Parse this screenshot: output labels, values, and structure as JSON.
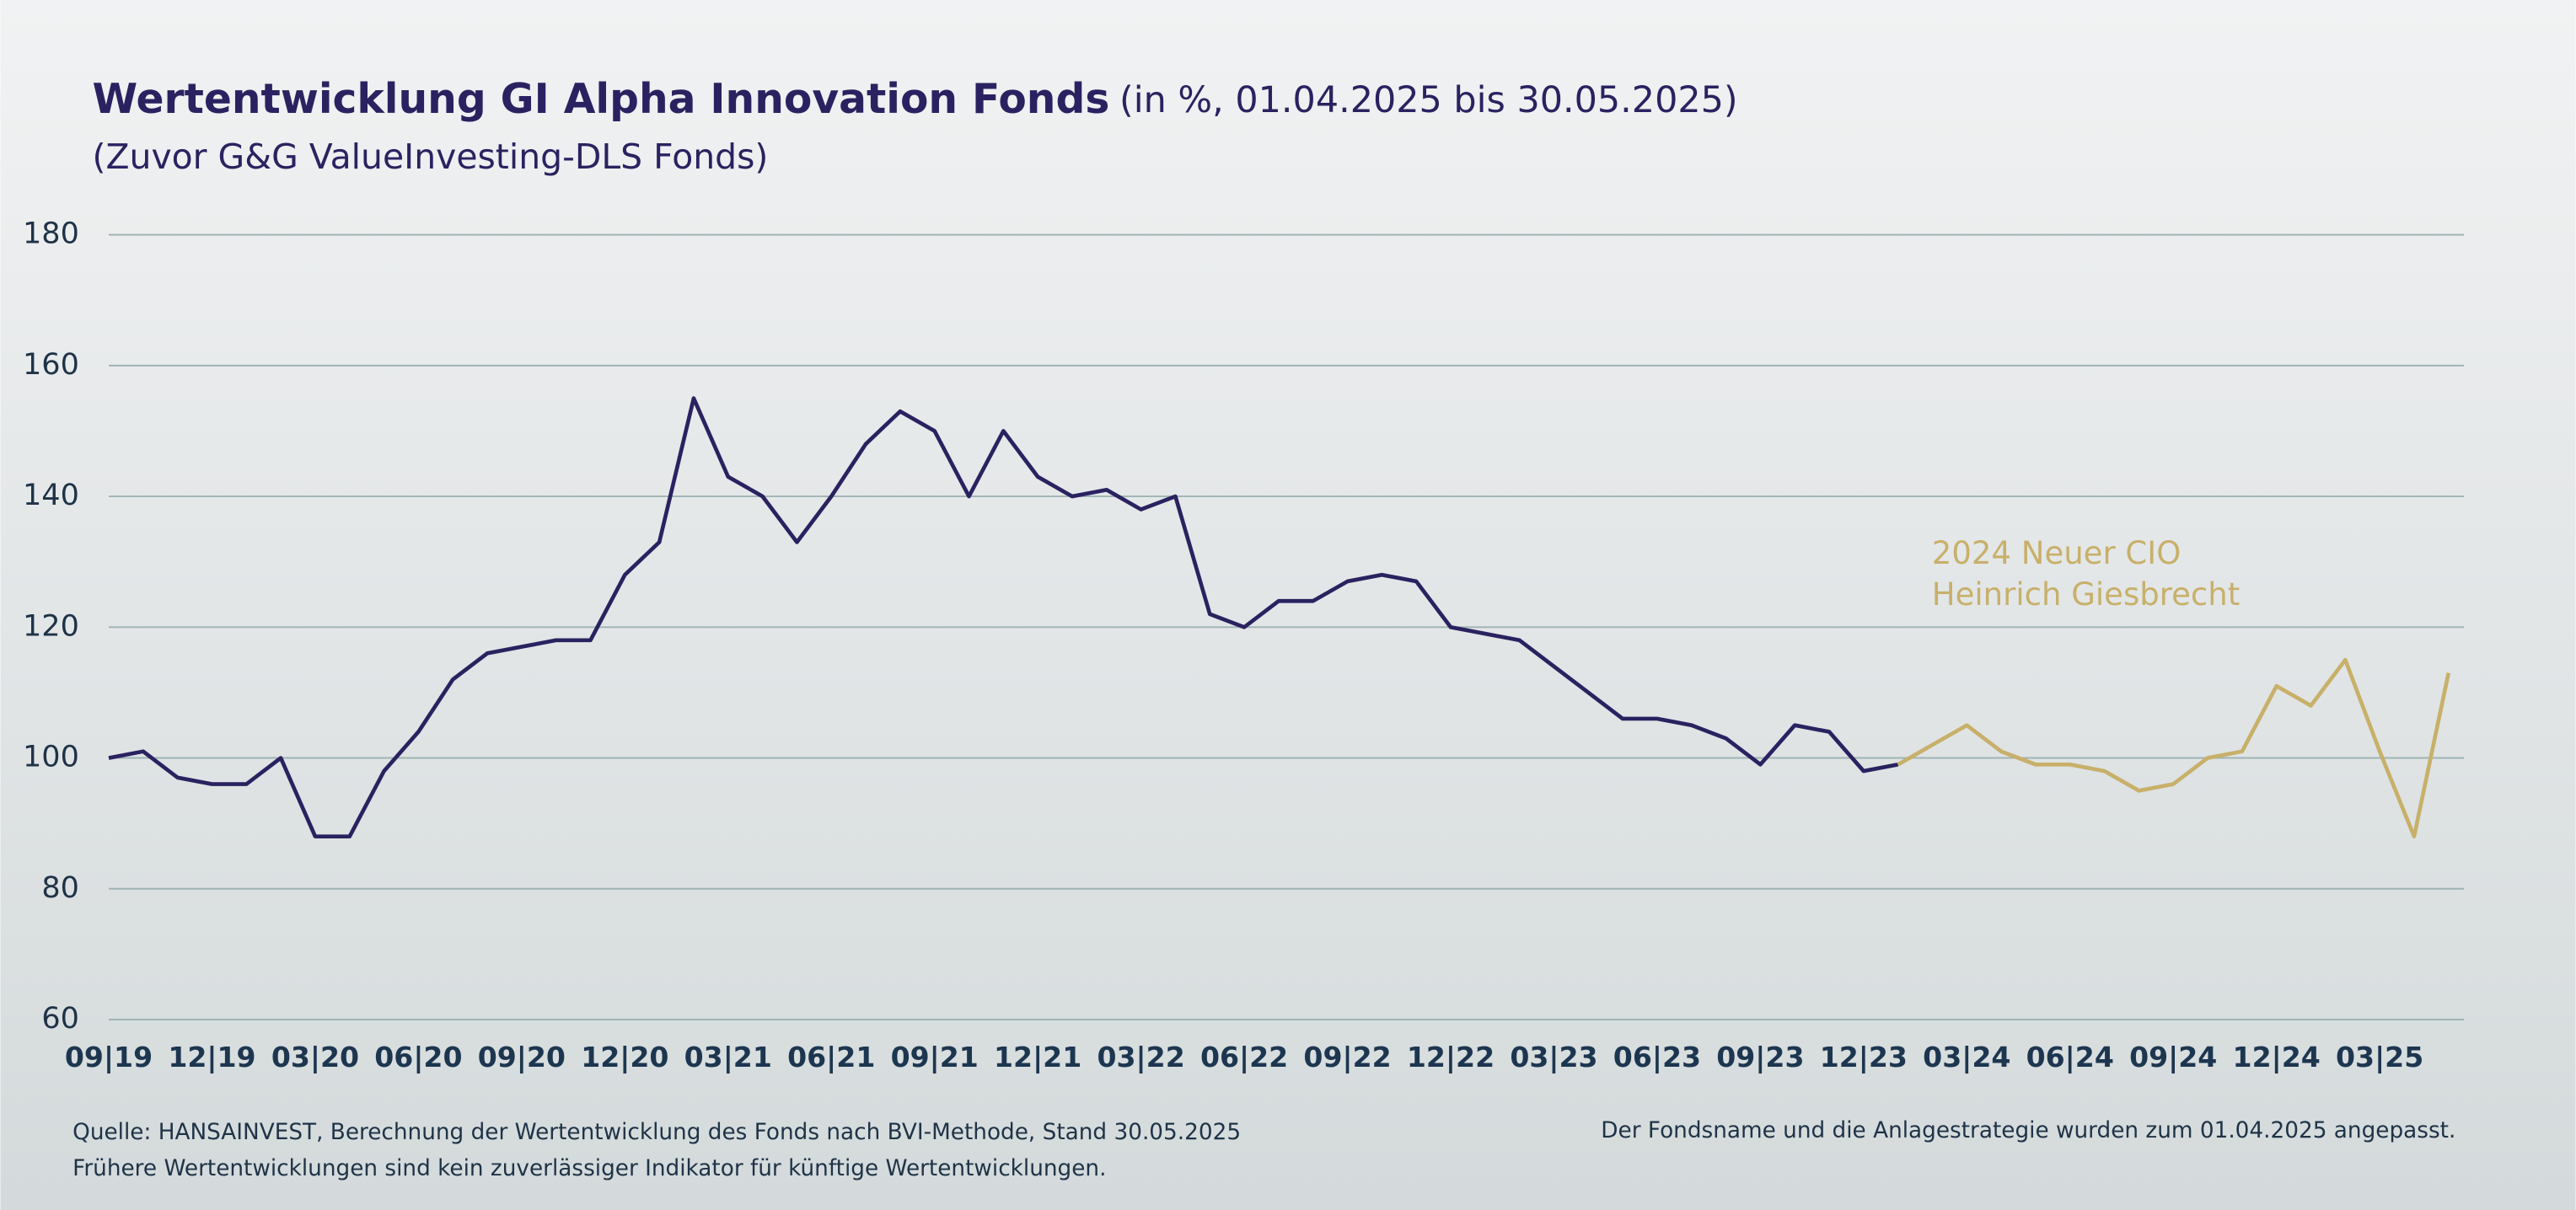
{
  "chart_data": {
    "type": "line",
    "title": "Wertentwicklung GI Alpha Innovation Fonds",
    "title_note": "(in %, 01.04.2025 bis 30.05.2025)",
    "subtitle": "(Zuvor G&G ValueInvesting-DLS Fonds)",
    "annotation": [
      "2024 Neuer CIO",
      "Heinrich Giesbrecht"
    ],
    "source": [
      "Quelle: HANSAINVEST, Berechnung der Wertentwicklung des Fonds nach BVI-Methode, Stand 30.05.2025",
      "Frühere Wertentwicklungen sind kein zuverlässiger Indikator für künftige Wertentwicklungen."
    ],
    "note": "Der Fondsname und die Anlagestrategie wurden zum 01.04.2025 angepasst.",
    "x": [
      "2019-09",
      "2019-10",
      "2019-11",
      "2019-12",
      "2020-01",
      "2020-02",
      "2020-03",
      "2020-04",
      "2020-05",
      "2020-06",
      "2020-07",
      "2020-08",
      "2020-09",
      "2020-10",
      "2020-11",
      "2020-12",
      "2021-01",
      "2021-02",
      "2021-03",
      "2021-04",
      "2021-05",
      "2021-06",
      "2021-07",
      "2021-08",
      "2021-09",
      "2021-10",
      "2021-11",
      "2021-12",
      "2022-01",
      "2022-02",
      "2022-03",
      "2022-04",
      "2022-05",
      "2022-06",
      "2022-07",
      "2022-08",
      "2022-09",
      "2022-10",
      "2022-11",
      "2022-12",
      "2023-01",
      "2023-02",
      "2023-03",
      "2023-04",
      "2023-05",
      "2023-06",
      "2023-07",
      "2023-08",
      "2023-09",
      "2023-10",
      "2023-11",
      "2023-12",
      "2024-01",
      "2024-02",
      "2024-03",
      "2024-04",
      "2024-05",
      "2024-06",
      "2024-07",
      "2024-08",
      "2024-09",
      "2024-10",
      "2024-11",
      "2024-12",
      "2025-01",
      "2025-02",
      "2025-03",
      "2025-04",
      "2025-05"
    ],
    "series": [
      {
        "name": "Fonds",
        "color": "#2a2260",
        "values": [
          100,
          101,
          97,
          96,
          96,
          100,
          88,
          88,
          98,
          104,
          112,
          116,
          117,
          118,
          118,
          128,
          133,
          155,
          143,
          140,
          133,
          140,
          148,
          153,
          150,
          140,
          150,
          143,
          140,
          141,
          138,
          140,
          122,
          120,
          124,
          124,
          127,
          128,
          127,
          120,
          119,
          118,
          114,
          110,
          106,
          106,
          105,
          103,
          99,
          105,
          104,
          98,
          99,
          null,
          null,
          null,
          null,
          null,
          null,
          null,
          null,
          null,
          null,
          null,
          null,
          null,
          null,
          null,
          null
        ]
      },
      {
        "name": "Neuer CIO",
        "color": "#c8b06a",
        "values": [
          null,
          null,
          null,
          null,
          null,
          null,
          null,
          null,
          null,
          null,
          null,
          null,
          null,
          null,
          null,
          null,
          null,
          null,
          null,
          null,
          null,
          null,
          null,
          null,
          null,
          null,
          null,
          null,
          null,
          null,
          null,
          null,
          null,
          null,
          null,
          null,
          null,
          null,
          null,
          null,
          null,
          null,
          null,
          null,
          null,
          null,
          null,
          null,
          null,
          null,
          null,
          null,
          99,
          102,
          105,
          101,
          99,
          99,
          98,
          95,
          96,
          100,
          101,
          111,
          108,
          115,
          101,
          88,
          113
        ]
      }
    ],
    "xlim": [
      "2019-09",
      "2025-05"
    ],
    "xticks": [
      {
        "value": "2019-09",
        "label": "09|19"
      },
      {
        "value": "2019-12",
        "label": "12|19"
      },
      {
        "value": "2020-03",
        "label": "03|20"
      },
      {
        "value": "2020-06",
        "label": "06|20"
      },
      {
        "value": "2020-09",
        "label": "09|20"
      },
      {
        "value": "2020-12",
        "label": "12|20"
      },
      {
        "value": "2021-03",
        "label": "03|21"
      },
      {
        "value": "2021-06",
        "label": "06|21"
      },
      {
        "value": "2021-09",
        "label": "09|21"
      },
      {
        "value": "2021-12",
        "label": "12|21"
      },
      {
        "value": "2022-03",
        "label": "03|22"
      },
      {
        "value": "2022-06",
        "label": "06|22"
      },
      {
        "value": "2022-09",
        "label": "09|22"
      },
      {
        "value": "2022-12",
        "label": "12|22"
      },
      {
        "value": "2023-03",
        "label": "03|23"
      },
      {
        "value": "2023-06",
        "label": "06|23"
      },
      {
        "value": "2023-09",
        "label": "09|23"
      },
      {
        "value": "2023-12",
        "label": "12|23"
      },
      {
        "value": "2024-03",
        "label": "03|24"
      },
      {
        "value": "2024-06",
        "label": "06|24"
      },
      {
        "value": "2024-09",
        "label": "09|24"
      },
      {
        "value": "2024-12",
        "label": "12|24"
      },
      {
        "value": "2025-03",
        "label": "03|25"
      }
    ],
    "ylim": [
      60,
      180
    ],
    "yticks": [
      60,
      80,
      100,
      120,
      140,
      160,
      180
    ],
    "grid": true
  }
}
